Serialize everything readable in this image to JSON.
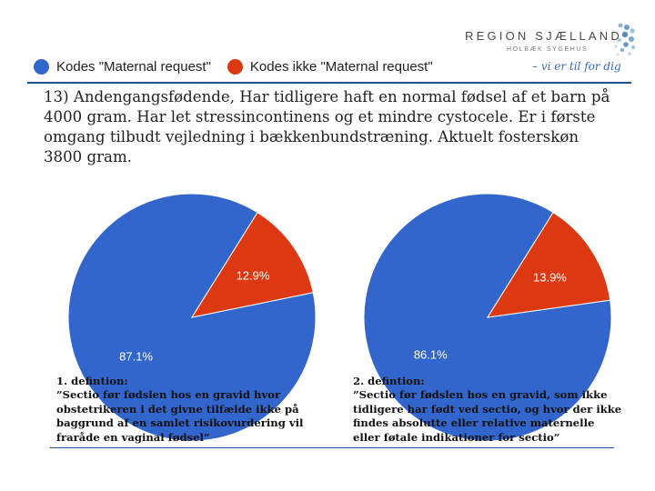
{
  "logo": {
    "title": "REGION SJÆLLAND",
    "subtitle": "HOLBÆK SYGEHUS",
    "slogan": "– vi er til for dig"
  },
  "legend": {
    "items": [
      {
        "label": "Kodes \"Maternal request\"",
        "color": "#3366cc"
      },
      {
        "label": "Kodes ikke \"Maternal request\"",
        "color": "#dc3912"
      }
    ]
  },
  "case_text": "13) Andengangsfødende, Har tidligere haft en normal fødsel af et barn på 4000 gram. Har let stressincontinens og et mindre cystocele. Er i første omgang tilbudt vejledning i bækkenbundstræning. Aktuelt fosterskøn 3800 gram.",
  "chart_data": [
    {
      "type": "pie",
      "categories": [
        "Kodes \"Maternal request\"",
        "Kodes ikke \"Maternal request\""
      ],
      "values": [
        87.1,
        12.9
      ],
      "labels": [
        "87.1%",
        "12.9%"
      ],
      "colors": [
        "#3366cc",
        "#dc3912"
      ]
    },
    {
      "type": "pie",
      "categories": [
        "Kodes \"Maternal request\"",
        "Kodes ikke \"Maternal request\""
      ],
      "values": [
        86.1,
        13.9
      ],
      "labels": [
        "86.1%",
        "13.9%"
      ],
      "colors": [
        "#3366cc",
        "#dc3912"
      ]
    }
  ],
  "definitions": [
    {
      "lines": [
        "1. defintion:",
        "”Sectio før fødslen hos en gravid hvor",
        "obstetrikeren i det givne tilfælde ikke på",
        "baggrund af en samlet risikovurdering vil",
        "fraråde en vaginal fødsel”"
      ]
    },
    {
      "lines": [
        "2. defintion:",
        "”Sectio før fødslen hos en gravid, som ikke",
        "tidligere har født ved sectio, og hvor der ikke",
        "findes absolutte eller relative maternelle",
        "eller føtale indikationer for sectio”"
      ]
    }
  ]
}
